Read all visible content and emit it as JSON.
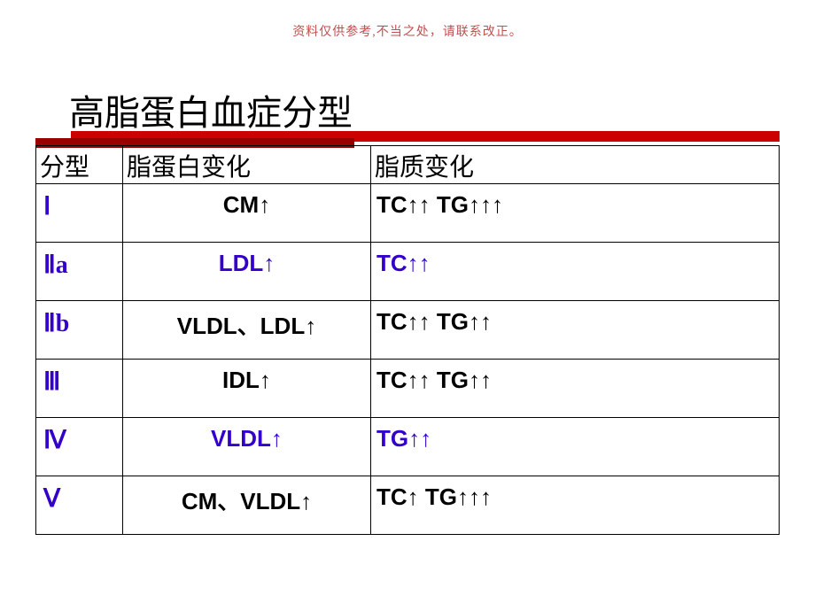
{
  "top_note": "资料仅供参考,不当之处，请联系改正。",
  "title": "高脂蛋白血症分型",
  "headers": {
    "col1": "分型",
    "col2": "脂蛋白变化",
    "col3": "脂质变化"
  },
  "rows": [
    {
      "type": "Ⅰ",
      "type_color": "#3300cc",
      "lipo": "CM↑",
      "lipo_color": "#000000",
      "lipid": "TC↑↑  TG↑↑↑",
      "lipid_color": "#000000"
    },
    {
      "type": "Ⅱa",
      "type_color": "#3300cc",
      "lipo": "LDL↑",
      "lipo_color": "#3300cc",
      "lipid": "TC↑↑",
      "lipid_color": "#3300cc"
    },
    {
      "type": "Ⅱb",
      "type_color": "#3300cc",
      "lipo": "VLDL、LDL↑",
      "lipo_color": "#000000",
      "lipid": "TC↑↑  TG↑↑",
      "lipid_color": "#000000"
    },
    {
      "type": "Ⅲ",
      "type_color": "#3300cc",
      "lipo": "IDL↑",
      "lipo_color": "#000000",
      "lipid": "TC↑↑  TG↑↑",
      "lipid_color": "#000000"
    },
    {
      "type": "Ⅳ",
      "type_color": "#3300cc",
      "lipo": "VLDL↑",
      "lipo_color": "#3300cc",
      "lipid": "TG↑↑",
      "lipid_color": "#3300cc"
    },
    {
      "type": "Ⅴ",
      "type_color": "#3300cc",
      "lipo": "CM、VLDL↑",
      "lipo_color": "#000000",
      "lipid": "TC↑  TG↑↑↑",
      "lipid_color": "#000000"
    }
  ],
  "colors": {
    "underline_main": "#cc0000",
    "underline_shadow": "#9a0000",
    "purple": "#3300cc",
    "background": "#ffffff",
    "text": "#000000",
    "note": "#c05050"
  }
}
